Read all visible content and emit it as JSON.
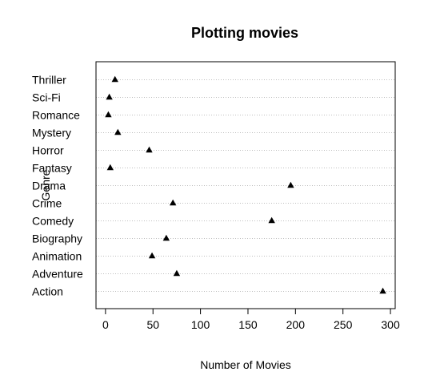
{
  "chart_data": {
    "type": "scatter",
    "title": "Plotting movies",
    "xlabel": "Number of Movies",
    "ylabel": "Genre",
    "xlim": [
      -10,
      305
    ],
    "xticks": [
      0,
      50,
      100,
      150,
      200,
      250,
      300
    ],
    "grid": "dotted-horizontal",
    "marker": "filled-triangle",
    "colors": {
      "points": "#000000",
      "grid": "#bebebe",
      "axes": "#000000"
    },
    "categories": [
      "Action",
      "Adventure",
      "Animation",
      "Biography",
      "Comedy",
      "Crime",
      "Drama",
      "Fantasy",
      "Horror",
      "Mystery",
      "Romance",
      "Sci-Fi",
      "Thriller"
    ],
    "values": [
      292,
      75,
      49,
      64,
      175,
      71,
      195,
      5,
      46,
      13,
      3,
      4,
      10
    ]
  }
}
